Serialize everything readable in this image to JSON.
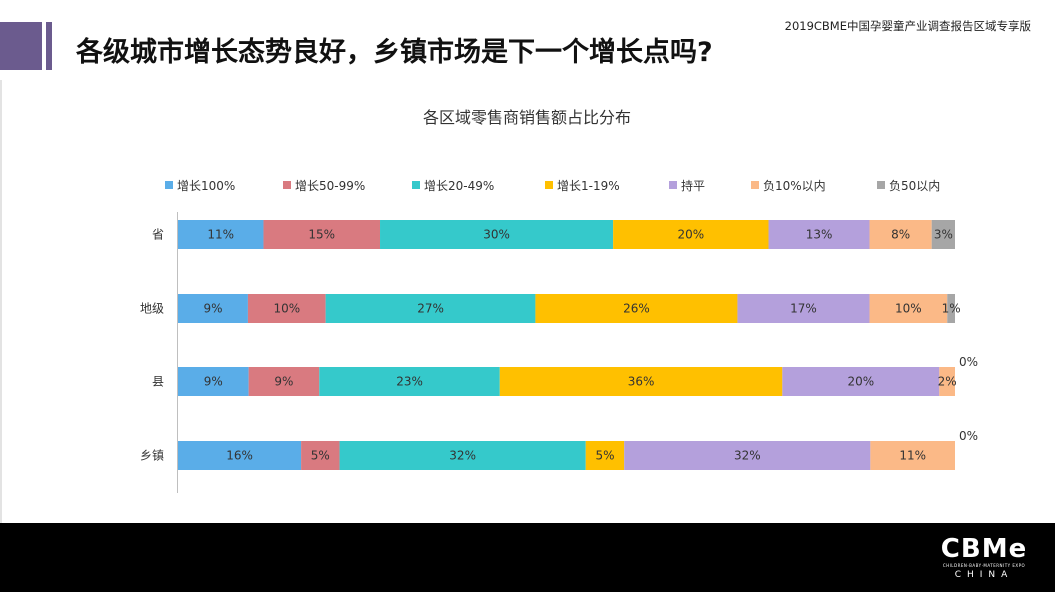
{
  "header": {
    "title": "各级城市增长态势良好，乡镇市场是下一个增长点吗?",
    "report_tag": "2019CBME中国孕婴童产业调查报告区域专享版"
  },
  "footer": {
    "logo_text": "CBMe",
    "logo_subtext": "CHILDREN·BABY·MATERNITY EXPO",
    "logo_china": "CHINA"
  },
  "colors": {
    "series": [
      "#5aade8",
      "#d97a80",
      "#35c9cb",
      "#ffc000",
      "#b4a0dc",
      "#fbb987",
      "#a6a6a6"
    ]
  },
  "chart_data": {
    "type": "bar",
    "orientation": "horizontal",
    "stacked": true,
    "title": "各区域零售商销售额占比分布",
    "categories": [
      "省",
      "地级",
      "县",
      "乡镇"
    ],
    "series": [
      {
        "name": "增长100%",
        "values": [
          11,
          9,
          9,
          16
        ],
        "labels": [
          "11%",
          "9%",
          "9%",
          "16%"
        ]
      },
      {
        "name": "增长50-99%",
        "values": [
          15,
          10,
          9,
          5
        ],
        "labels": [
          "15%",
          "10%",
          "9%",
          "5%"
        ]
      },
      {
        "name": "增长20-49%",
        "values": [
          30,
          27,
          23,
          32
        ],
        "labels": [
          "30%",
          "27%",
          "23%",
          "32%"
        ]
      },
      {
        "name": "增长1-19%",
        "values": [
          20,
          26,
          36,
          5
        ],
        "labels": [
          "20%",
          "26%",
          "36%",
          "5%"
        ]
      },
      {
        "name": "持平",
        "values": [
          13,
          17,
          20,
          32
        ],
        "labels": [
          "13%",
          "17%",
          "20%",
          "32%"
        ]
      },
      {
        "name": "负10%以内",
        "values": [
          8,
          10,
          2,
          11
        ],
        "labels": [
          "8%",
          "10%",
          "2%",
          "11%"
        ]
      },
      {
        "name": "负50以内",
        "values": [
          3,
          1,
          0,
          0
        ],
        "labels": [
          "3%",
          "1%",
          "0%",
          "0%"
        ]
      }
    ],
    "legend_position": "top",
    "grid": false
  }
}
